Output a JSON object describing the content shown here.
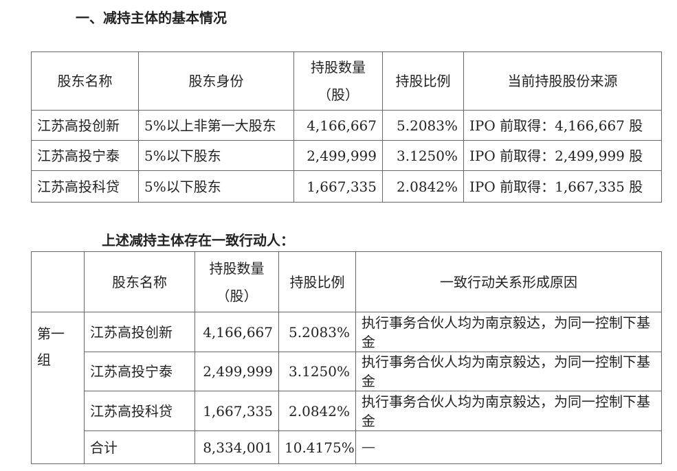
{
  "section_title": "一、减持主体的基本情况",
  "table1": {
    "headers": [
      "股东名称",
      "股东身份",
      "持股数量",
      "（股）",
      "持股比例",
      "当前持股股份来源"
    ],
    "rows": [
      [
        "江苏高投创新",
        "5%以上非第一大股东",
        "4,166,667",
        "5.2083%",
        "IPO 前取得：4,166,667 股"
      ],
      [
        "江苏高投宁泰",
        "5%以下股东",
        "2,499,999",
        "3.1250%",
        "IPO 前取得：2,499,999 股"
      ],
      [
        "江苏高投科贷",
        "5%以下股东",
        "1,667,335",
        "2.0842%",
        "IPO 前取得：1,667,335 股"
      ]
    ]
  },
  "subtitle": "上述减持主体存在一致行动人：",
  "table2": {
    "headers": [
      "股东名称",
      "持股数量",
      "（股）",
      "持股比例",
      "一致行动关系形成原因"
    ],
    "group": "第一组",
    "rows": [
      [
        "江苏高投创新",
        "4,166,667",
        "5.2083%",
        "执行事务合伙人均为南京毅达，为同一控制下基金"
      ],
      [
        "江苏高投宁泰",
        "2,499,999",
        "3.1250%",
        "执行事务合伙人均为南京毅达，为同一控制下基金"
      ],
      [
        "江苏高投科贷",
        "1,667,335",
        "2.0842%",
        "执行事务合伙人均为南京毅达，为同一控制下基金"
      ],
      [
        "合计",
        "8,334,001",
        "10.4175%",
        "—"
      ]
    ]
  }
}
